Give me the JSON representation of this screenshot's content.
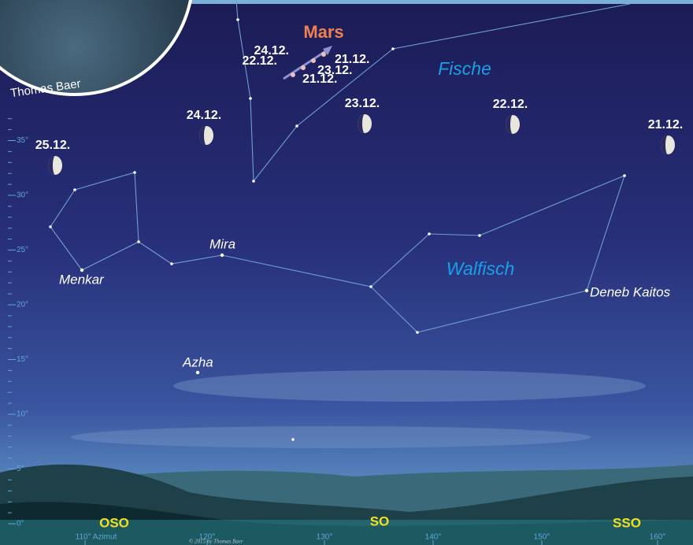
{
  "credit": "Thomas Baer",
  "copyright": "© 2015 by Thomas Baer",
  "planet": {
    "name": "Mars",
    "dates": [
      "24.12.",
      "22.12.",
      "21.12.",
      "23.12.",
      "21.12."
    ]
  },
  "moon_dates": [
    "25.12.",
    "24.12.",
    "23.12.",
    "22.12.",
    "21.12."
  ],
  "constellations": [
    "Fische",
    "Walfisch"
  ],
  "stars": [
    "Menkar",
    "Mira",
    "Deneb Kaitos",
    "Azha"
  ],
  "altitude_labels": [
    "0°",
    "5°",
    "10°",
    "15°",
    "20°",
    "25°",
    "30°",
    "35°"
  ],
  "azimuth_labels": [
    "110° Azimut",
    "120°",
    "130°",
    "140°",
    "150°",
    "160°"
  ],
  "directions": [
    "OSO",
    "SO",
    "SSO"
  ]
}
